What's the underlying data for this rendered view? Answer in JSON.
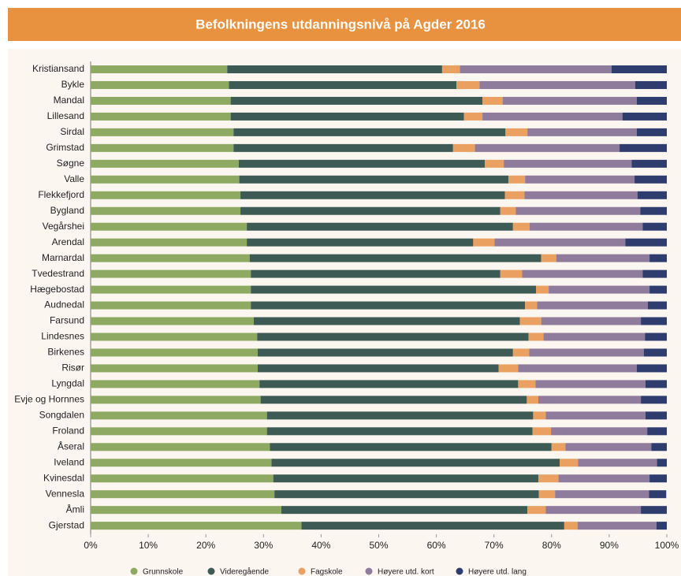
{
  "chart_data": {
    "type": "stacked-bar-horizontal",
    "title": "Befolkningens utdanningsnivå på Agder 2016",
    "categories": [
      "Kristiansand",
      "Bykle",
      "Mandal",
      "Lillesand",
      "Sirdal",
      "Grimstad",
      "Søgne",
      "Valle",
      "Flekkefjord",
      "Bygland",
      "Vegårshei",
      "Arendal",
      "Marnardal",
      "Tvedestrand",
      "Hægebostad",
      "Audnedal",
      "Farsund",
      "Lindesnes",
      "Birkenes",
      "Risør",
      "Lyngdal",
      "Evje og Hornnes",
      "Songdalen",
      "Froland",
      "Åseral",
      "Iveland",
      "Kvinesdal",
      "Vennesla",
      "Åmli",
      "Gjerstad"
    ],
    "series": [
      {
        "name": "Grunnskole",
        "color": "#8eaa62",
        "values": [
          23.7,
          24.0,
          24.3,
          24.3,
          24.8,
          24.8,
          25.7,
          25.8,
          26.0,
          26.0,
          27.1,
          27.1,
          27.6,
          27.8,
          27.8,
          27.8,
          28.3,
          28.9,
          29.0,
          29.0,
          29.3,
          29.5,
          30.6,
          30.6,
          31.1,
          31.4,
          31.7,
          31.9,
          33.1,
          36.6
        ]
      },
      {
        "name": "Videregående",
        "color": "#3e5a55",
        "values": [
          37.3,
          39.5,
          43.7,
          40.5,
          47.2,
          38.1,
          42.7,
          46.7,
          45.9,
          45.1,
          46.2,
          39.3,
          50.6,
          43.3,
          49.5,
          47.6,
          46.2,
          47.1,
          44.3,
          41.8,
          44.9,
          46.2,
          46.2,
          46.1,
          48.9,
          50.0,
          46.0,
          45.9,
          42.7,
          45.6
        ]
      },
      {
        "name": "Fagskole",
        "color": "#e9a060",
        "values": [
          3.1,
          4.0,
          3.5,
          3.2,
          3.8,
          3.8,
          3.3,
          2.9,
          3.4,
          2.7,
          2.9,
          3.7,
          2.6,
          3.8,
          2.2,
          2.1,
          3.7,
          2.6,
          2.8,
          3.4,
          3.0,
          2.0,
          2.2,
          3.2,
          2.4,
          3.2,
          3.5,
          2.8,
          3.2,
          2.3
        ]
      },
      {
        "name": "Høyere utd. kort",
        "color": "#8f7b9c",
        "values": [
          26.3,
          27.0,
          23.3,
          24.3,
          19.0,
          25.1,
          22.2,
          19.0,
          19.6,
          21.6,
          19.6,
          22.7,
          16.2,
          20.9,
          17.5,
          19.2,
          17.3,
          17.6,
          19.9,
          20.6,
          19.1,
          17.8,
          17.3,
          16.7,
          14.9,
          13.7,
          15.8,
          16.3,
          16.5,
          13.7
        ]
      },
      {
        "name": "Høyere utd. lang",
        "color": "#2f3c6e",
        "values": [
          9.6,
          5.5,
          5.2,
          7.7,
          5.2,
          8.2,
          6.1,
          5.6,
          5.1,
          4.6,
          4.2,
          7.2,
          3.0,
          4.2,
          3.0,
          3.3,
          4.5,
          3.8,
          4.0,
          5.2,
          3.7,
          4.5,
          3.7,
          3.4,
          2.7,
          1.7,
          3.0,
          3.0,
          4.5,
          1.8
        ]
      }
    ],
    "xlim": [
      0,
      100
    ],
    "xticks": [
      {
        "value": 0,
        "label": "0%"
      },
      {
        "value": 10,
        "label": "10%"
      },
      {
        "value": 20,
        "label": "20%"
      },
      {
        "value": 30,
        "label": "30%"
      },
      {
        "value": 40,
        "label": "40%"
      },
      {
        "value": 50,
        "label": "50%"
      },
      {
        "value": 60,
        "label": "60%"
      },
      {
        "value": 70,
        "label": "70%"
      },
      {
        "value": 80,
        "label": "80%"
      },
      {
        "value": 90,
        "label": "90%"
      },
      {
        "value": 100,
        "label": "100%"
      }
    ],
    "legend": "bottom"
  }
}
